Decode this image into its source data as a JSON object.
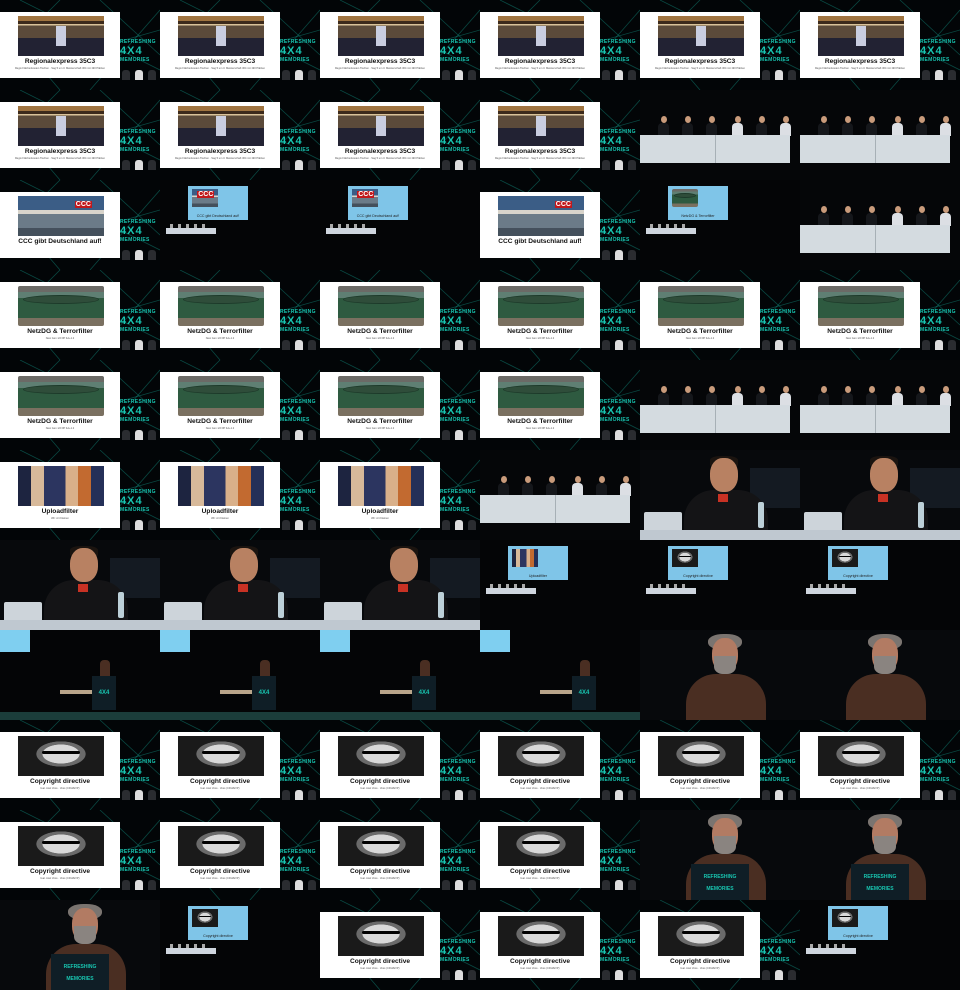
{
  "slides": {
    "regio": {
      "title": "Regionalexpress 35C3",
      "subtitle": "Regio Flächenkosten Tischen · Sag 5 um 3. Meisterschaft 304 mit 190 Plätzen"
    },
    "ccc": {
      "title": "CCC gibt Deutschland auf!",
      "subtitle": ""
    },
    "netzdg": {
      "title": "NetzDG & Terrorfilter",
      "subtitle": "New Gen 1/2 DP 4A+1.2"
    },
    "upload": {
      "title": "Uploadfilter",
      "subtitle": "Wir: Art Kleinen"
    },
    "copyright": {
      "title": "Copyright directive",
      "subtitle": "feat. Axel Voss · Voss (CDU/EVP)"
    }
  },
  "logo": {
    "line1": "REFRESHING",
    "line2": "4X4",
    "line3": "MEMORIES"
  },
  "stage_screen_labels": {
    "ccc": "CCC gibt Deutschland auf!",
    "netzdg": "NetzDG & Terrorfilter",
    "upload": "Uploadfilter",
    "copyright": "Copyright directive"
  },
  "grid": {
    "columns": 6,
    "rows": 11
  },
  "frames": [
    "slide:regio",
    "slide:regio",
    "slide:regio",
    "slide:regio",
    "slide:regio",
    "slide:regio",
    "slide:regio",
    "slide:regio",
    "slide:regio",
    "slide:regio",
    "panel",
    "panel",
    "slide:ccc",
    "stage:ccc",
    "stage:ccc",
    "slide:ccc",
    "stage:netzdg",
    "panel",
    "slide:netzdg",
    "slide:netzdg",
    "slide:netzdg",
    "slide:netzdg",
    "slide:netzdg",
    "slide:netzdg",
    "slide:netzdg",
    "slide:netzdg",
    "slide:netzdg",
    "slide:netzdg",
    "panel",
    "panel",
    "slide:upload",
    "slide:upload",
    "slide:upload",
    "panel",
    "close-a",
    "close-a",
    "close-a",
    "close-a",
    "close-a",
    "stage:upload",
    "stage:copyright",
    "stage:copyright",
    "podium-wide",
    "podium-wide",
    "podium-wide",
    "podium-wide",
    "close-b",
    "close-b",
    "slide:copyright",
    "slide:copyright",
    "slide:copyright",
    "slide:copyright",
    "slide:copyright",
    "slide:copyright",
    "slide:copyright",
    "slide:copyright",
    "slide:copyright",
    "slide:copyright",
    "close-b-podium",
    "close-b-podium",
    "close-b-podium",
    "stage:copyright",
    "slide:copyright",
    "slide:copyright",
    "slide:copyright",
    "stage:copyright"
  ],
  "colors": {
    "accent": "#18c4b0",
    "background": "#000000",
    "slide": "#ffffff",
    "speaker_shirt_red": "#c83224"
  }
}
